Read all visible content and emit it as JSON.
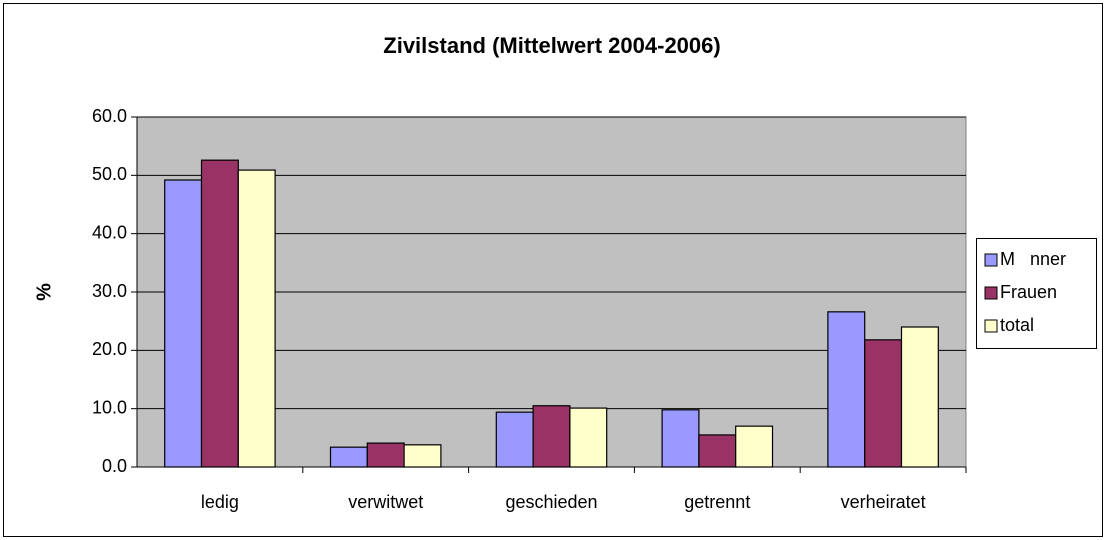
{
  "chart_data": {
    "type": "bar",
    "title": "Zivilstand (Mittelwert 2004-2006)",
    "y_label": "%",
    "categories": [
      "ledig",
      "verwitwet",
      "geschieden",
      "getrennt",
      "verheiratet"
    ],
    "series": [
      {
        "name": "M   nner",
        "color": "#9999ff",
        "values": [
          49.2,
          3.4,
          9.4,
          9.8,
          26.6
        ]
      },
      {
        "name": "Frauen",
        "color": "#993366",
        "values": [
          52.6,
          4.1,
          10.5,
          5.5,
          21.8
        ]
      },
      {
        "name": "total",
        "color": "#ffffcc",
        "values": [
          50.9,
          3.8,
          10.1,
          7.0,
          24.0
        ]
      }
    ],
    "ylim": [
      0,
      60
    ],
    "yticks": [
      {
        "value": 0,
        "label": "0.0"
      },
      {
        "value": 10,
        "label": "10.0"
      },
      {
        "value": 20,
        "label": "20.0"
      },
      {
        "value": 30,
        "label": "30.0"
      },
      {
        "value": 40,
        "label": "40.0"
      },
      {
        "value": 50,
        "label": "50.0"
      },
      {
        "value": 60,
        "label": "60.0"
      }
    ],
    "grid": true,
    "legend": "right",
    "plot_background": "#c0c0c0"
  }
}
